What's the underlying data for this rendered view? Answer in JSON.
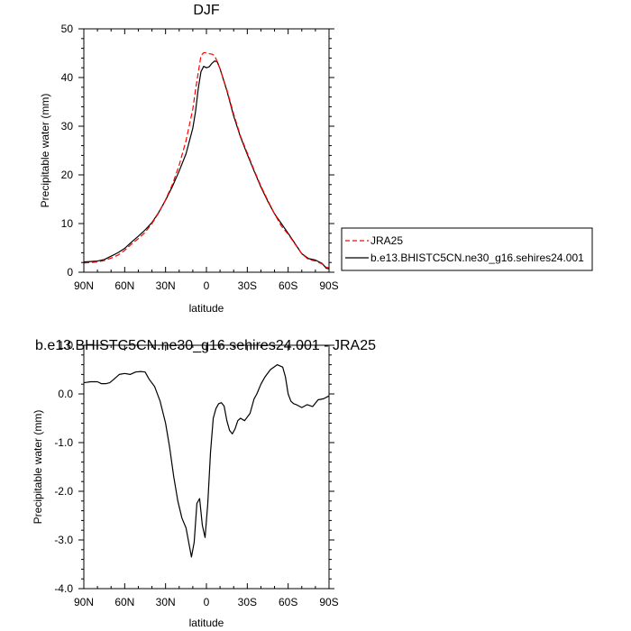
{
  "chart_data": [
    {
      "type": "line",
      "title": "DJF",
      "xlabel": "latitude",
      "ylabel": "Precipitable water (mm)",
      "xlim": [
        90,
        -90
      ],
      "ylim": [
        0,
        50
      ],
      "x_ticks": [
        90,
        60,
        30,
        0,
        -30,
        -60,
        -90
      ],
      "x_tick_labels": [
        "90N",
        "60N",
        "30N",
        "0",
        "30S",
        "60S",
        "90S"
      ],
      "y_ticks": [
        0,
        10,
        20,
        30,
        40,
        50
      ],
      "y_tick_labels": [
        "0",
        "10",
        "20",
        "30",
        "40",
        "50"
      ],
      "legend": "outside-right",
      "series": [
        {
          "name": "JRA25",
          "color": "#ff0000",
          "dash": "dashed",
          "x": [
            90,
            85,
            80,
            75,
            70,
            65,
            60,
            55,
            50,
            45,
            40,
            35,
            30,
            25,
            20,
            15,
            10,
            8,
            6,
            4,
            2,
            0,
            -2,
            -4,
            -6,
            -8,
            -10,
            -15,
            -20,
            -25,
            -30,
            -35,
            -40,
            -45,
            -50,
            -55,
            -60,
            -65,
            -70,
            -75,
            -80,
            -85,
            -88,
            -90
          ],
          "y": [
            1.9,
            2.0,
            2.1,
            2.4,
            2.9,
            3.5,
            4.5,
            5.8,
            6.9,
            8.2,
            10.0,
            12.2,
            14.9,
            18.0,
            22.0,
            27.0,
            33.5,
            37.5,
            41.0,
            44.5,
            45.1,
            45.1,
            44.9,
            44.8,
            44.5,
            43.2,
            41.8,
            37.5,
            32.5,
            28.0,
            24.5,
            21.0,
            17.7,
            14.8,
            12.0,
            9.5,
            7.8,
            5.8,
            3.8,
            2.6,
            2.3,
            1.7,
            1.0,
            0.9
          ]
        },
        {
          "name": "b.e13.BHISTC5CN.ne30_g16.sehires24.001",
          "color": "#000000",
          "dash": "solid",
          "x": [
            90,
            85,
            80,
            75,
            70,
            65,
            60,
            55,
            50,
            45,
            40,
            35,
            30,
            25,
            20,
            15,
            10,
            8,
            6,
            4,
            2,
            0,
            -2,
            -4,
            -6,
            -8,
            -10,
            -15,
            -20,
            -25,
            -30,
            -35,
            -40,
            -45,
            -50,
            -55,
            -60,
            -65,
            -70,
            -75,
            -80,
            -85,
            -88,
            -90
          ],
          "y": [
            2.1,
            2.2,
            2.3,
            2.6,
            3.3,
            4.0,
            4.9,
            6.2,
            7.4,
            8.7,
            10.2,
            12.3,
            14.8,
            17.6,
            20.8,
            24.3,
            29.6,
            33.0,
            37.7,
            41.2,
            42.3,
            42.0,
            42.2,
            42.9,
            43.4,
            43.2,
            41.8,
            37.3,
            32.1,
            27.8,
            24.2,
            20.8,
            17.5,
            14.6,
            12.0,
            10.0,
            8.0,
            5.9,
            3.8,
            2.8,
            2.5,
            1.8,
            0.8,
            0.7
          ]
        }
      ]
    },
    {
      "type": "line",
      "title": "b.e13.BHISTC5CN.ne30_g16.sehires24.001 - JRA25",
      "xlabel": "latitude",
      "ylabel": "Precipitable water (mm)",
      "xlim": [
        90,
        -90
      ],
      "ylim": [
        -4.0,
        1.0
      ],
      "x_ticks": [
        90,
        60,
        30,
        0,
        -30,
        -60,
        -90
      ],
      "x_tick_labels": [
        "90N",
        "60N",
        "30N",
        "0",
        "30S",
        "60S",
        "90S"
      ],
      "y_ticks": [
        1.0,
        0.0,
        -1.0,
        -2.0,
        -3.0,
        -4.0
      ],
      "y_tick_labels": [
        "1.0",
        "0.0",
        "-1.0",
        "-2.0",
        "-3.0",
        "-4.0"
      ],
      "series": [
        {
          "color": "#000000",
          "dash": "solid",
          "x": [
            90,
            85,
            80,
            77,
            74,
            71,
            68,
            64,
            60,
            56,
            52,
            48,
            45,
            42,
            38,
            34,
            30,
            27,
            24,
            21,
            18,
            15,
            13,
            11,
            9,
            7,
            5,
            3,
            1,
            -1,
            -3,
            -5,
            -7,
            -9,
            -11,
            -13,
            -15,
            -17,
            -19,
            -21,
            -23,
            -25,
            -28,
            -32,
            -35,
            -37,
            -40,
            -43,
            -47,
            -52,
            -56,
            -58,
            -60,
            -62,
            -64,
            -66,
            -70,
            -74,
            -78,
            -82,
            -86,
            -90
          ],
          "y": [
            0.23,
            0.25,
            0.25,
            0.21,
            0.21,
            0.23,
            0.3,
            0.4,
            0.42,
            0.4,
            0.45,
            0.46,
            0.45,
            0.3,
            0.15,
            -0.15,
            -0.6,
            -1.1,
            -1.7,
            -2.2,
            -2.55,
            -2.75,
            -3.05,
            -3.35,
            -3.05,
            -2.25,
            -2.15,
            -2.7,
            -2.95,
            -2.25,
            -1.2,
            -0.5,
            -0.3,
            -0.2,
            -0.18,
            -0.25,
            -0.55,
            -0.75,
            -0.82,
            -0.72,
            -0.55,
            -0.5,
            -0.55,
            -0.4,
            -0.1,
            0.0,
            0.2,
            0.35,
            0.5,
            0.6,
            0.55,
            0.35,
            0.0,
            -0.15,
            -0.2,
            -0.22,
            -0.28,
            -0.22,
            -0.26,
            -0.12,
            -0.1,
            -0.04
          ]
        }
      ]
    }
  ]
}
